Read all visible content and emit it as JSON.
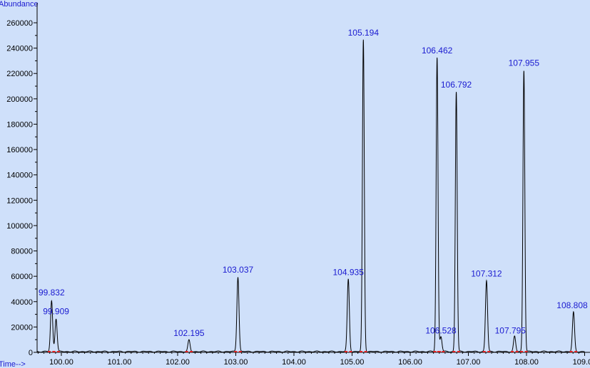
{
  "colors": {
    "background": "#cfe0fa",
    "trace": "#000000",
    "axis": "#000000",
    "peak_label": "#1a1ad0",
    "baseline_marker": "#e02020"
  },
  "chart_data": {
    "type": "line",
    "ylabel": "Abundance",
    "xlabel": "Time-->",
    "xlim": [
      99.55,
      109.0
    ],
    "ylim": [
      0,
      270000
    ],
    "grid": false,
    "x_ticks": [
      100.0,
      101.0,
      102.0,
      103.0,
      104.0,
      105.0,
      106.0,
      107.0,
      108.0,
      109.0
    ],
    "x_tick_labels": [
      "100.00",
      "101.00",
      "102.00",
      "103.00",
      "104.00",
      "105.00",
      "106.00",
      "107.00",
      "108.00",
      "109.00"
    ],
    "y_ticks": [
      0,
      20000,
      40000,
      60000,
      80000,
      100000,
      120000,
      140000,
      160000,
      180000,
      200000,
      220000,
      240000,
      260000
    ],
    "y_tick_labels": [
      "0",
      "20000",
      "40000",
      "60000",
      "80000",
      "100000",
      "120000",
      "140000",
      "160000",
      "180000",
      "200000",
      "220000",
      "240000",
      "260000"
    ],
    "peaks": [
      {
        "label": "99.832",
        "x": 99.832,
        "y": 40000
      },
      {
        "label": "99.909",
        "x": 99.909,
        "y": 26000
      },
      {
        "label": "102.195",
        "x": 102.195,
        "y": 9000
      },
      {
        "label": "103.037",
        "x": 103.037,
        "y": 59000
      },
      {
        "label": "104.935",
        "x": 104.935,
        "y": 57000
      },
      {
        "label": "105.194",
        "x": 105.194,
        "y": 246000
      },
      {
        "label": "106.462",
        "x": 106.462,
        "y": 232000
      },
      {
        "label": "106.528",
        "x": 106.528,
        "y": 12000
      },
      {
        "label": "106.792",
        "x": 106.792,
        "y": 205000
      },
      {
        "label": "107.312",
        "x": 107.312,
        "y": 56000
      },
      {
        "label": "107.795",
        "x": 107.795,
        "y": 12000
      },
      {
        "label": "107.955",
        "x": 107.955,
        "y": 222000
      },
      {
        "label": "108.808",
        "x": 108.808,
        "y": 31000
      }
    ]
  }
}
